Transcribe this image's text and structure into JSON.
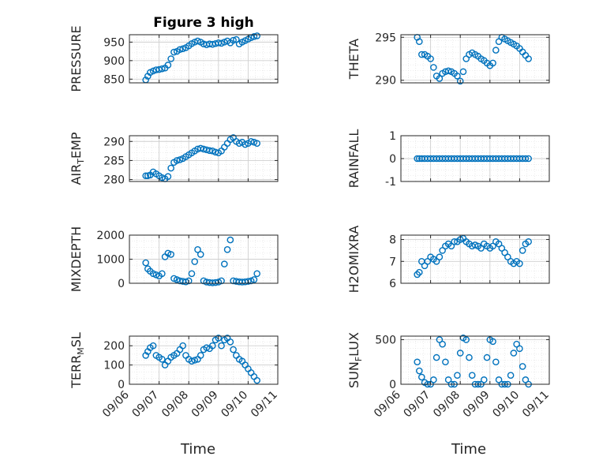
{
  "chart_data": [
    {
      "type": "scatter",
      "title": "Figure 3 high",
      "ylabel": "PRESSURE",
      "ylim": [
        840,
        970
      ],
      "yticks": [
        850,
        900,
        950
      ],
      "xticks": [
        "09/06",
        "09/07",
        "09/08",
        "09/09",
        "09/10",
        "09/11"
      ],
      "xlim": [
        0,
        5
      ],
      "grid": true,
      "series": [
        {
          "x": [
            0.55,
            0.62,
            0.7,
            0.8,
            0.9,
            1.0,
            1.1,
            1.2,
            1.3,
            1.4,
            1.5,
            1.6,
            1.7,
            1.8,
            1.9,
            2.0,
            2.1,
            2.2,
            2.3,
            2.4,
            2.5,
            2.6,
            2.7,
            2.8,
            2.9,
            3.0,
            3.1,
            3.2,
            3.3,
            3.4,
            3.5,
            3.6,
            3.7,
            3.8,
            3.9,
            4.0,
            4.1,
            4.2,
            4.3
          ],
          "y": [
            848,
            858,
            868,
            872,
            875,
            876,
            878,
            880,
            888,
            905,
            923,
            925,
            930,
            932,
            935,
            940,
            946,
            950,
            953,
            950,
            945,
            943,
            945,
            944,
            946,
            948,
            947,
            950,
            953,
            948,
            955,
            957,
            945,
            950,
            954,
            958,
            962,
            965,
            967
          ]
        }
      ]
    },
    {
      "type": "scatter",
      "ylabel": "THETA",
      "ylim": [
        289.7,
        295.3
      ],
      "yticks": [
        290,
        295
      ],
      "xticks": [
        "09/06",
        "09/07",
        "09/08",
        "09/09",
        "09/10",
        "09/11"
      ],
      "xlim": [
        0,
        5
      ],
      "grid": true,
      "series": [
        {
          "x": [
            0.55,
            0.62,
            0.7,
            0.8,
            0.9,
            1.0,
            1.1,
            1.2,
            1.3,
            1.4,
            1.5,
            1.6,
            1.7,
            1.8,
            1.9,
            2.0,
            2.1,
            2.2,
            2.3,
            2.4,
            2.5,
            2.6,
            2.7,
            2.8,
            2.9,
            3.0,
            3.1,
            3.2,
            3.3,
            3.4,
            3.5,
            3.6,
            3.7,
            3.8,
            3.9,
            4.0,
            4.1,
            4.2,
            4.3
          ],
          "y": [
            295,
            294.5,
            293,
            293,
            292.8,
            292.5,
            291.5,
            290.5,
            290.2,
            290.8,
            291,
            291.1,
            291,
            290.8,
            290.5,
            289.9,
            291,
            292.5,
            293,
            293.2,
            293,
            292.8,
            292.5,
            292.3,
            292,
            291.7,
            292,
            293.5,
            294.5,
            295,
            294.8,
            294.6,
            294.4,
            294.2,
            294,
            293.7,
            293.3,
            292.9,
            292.5
          ]
        }
      ]
    },
    {
      "type": "scatter",
      "ylabel": "AIR_TEMP",
      "ylim": [
        279.5,
        291.5
      ],
      "yticks": [
        280,
        285,
        290
      ],
      "xticks": [
        "09/06",
        "09/07",
        "09/08",
        "09/09",
        "09/10",
        "09/11"
      ],
      "xlim": [
        0,
        5
      ],
      "grid": true,
      "series": [
        {
          "x": [
            0.55,
            0.62,
            0.7,
            0.8,
            0.9,
            1.0,
            1.1,
            1.2,
            1.3,
            1.4,
            1.5,
            1.6,
            1.7,
            1.8,
            1.9,
            2.0,
            2.1,
            2.2,
            2.3,
            2.4,
            2.5,
            2.6,
            2.7,
            2.8,
            2.9,
            3.0,
            3.1,
            3.2,
            3.3,
            3.4,
            3.5,
            3.6,
            3.7,
            3.8,
            3.9,
            4.0,
            4.1,
            4.2,
            4.3
          ],
          "y": [
            281,
            281,
            281.2,
            282,
            281.5,
            281,
            280.5,
            280.2,
            280.8,
            283,
            284.5,
            285,
            285.2,
            285.5,
            286,
            286.5,
            287,
            287.5,
            288,
            288.2,
            288,
            287.8,
            287.6,
            287.5,
            287.2,
            287,
            287.5,
            288.5,
            289.5,
            290.5,
            291,
            290,
            289.5,
            289.8,
            289.2,
            289.5,
            290,
            289.8,
            289.5
          ]
        }
      ]
    },
    {
      "type": "scatter",
      "ylabel": "RAINFALL",
      "ylim": [
        -1,
        1
      ],
      "yticks": [
        -1,
        0,
        1
      ],
      "xticks": [
        "09/06",
        "09/07",
        "09/08",
        "09/09",
        "09/10",
        "09/11"
      ],
      "xlim": [
        0,
        5
      ],
      "grid": true,
      "series": [
        {
          "x": [
            0.55,
            0.62,
            0.7,
            0.8,
            0.9,
            1.0,
            1.1,
            1.2,
            1.3,
            1.4,
            1.5,
            1.6,
            1.7,
            1.8,
            1.9,
            2.0,
            2.1,
            2.2,
            2.3,
            2.4,
            2.5,
            2.6,
            2.7,
            2.8,
            2.9,
            3.0,
            3.1,
            3.2,
            3.3,
            3.4,
            3.5,
            3.6,
            3.7,
            3.8,
            3.9,
            4.0,
            4.1,
            4.2,
            4.3
          ],
          "y": [
            0,
            0,
            0,
            0,
            0,
            0,
            0,
            0,
            0,
            0,
            0,
            0,
            0,
            0,
            0,
            0,
            0,
            0,
            0,
            0,
            0,
            0,
            0,
            0,
            0,
            0,
            0,
            0,
            0,
            0,
            0,
            0,
            0,
            0,
            0,
            0,
            0,
            0,
            0
          ]
        }
      ]
    },
    {
      "type": "scatter",
      "ylabel": "MIXDEPTH",
      "ylim": [
        0,
        2000
      ],
      "yticks": [
        0,
        1000,
        2000
      ],
      "xticks": [
        "09/06",
        "09/07",
        "09/08",
        "09/09",
        "09/10",
        "09/11"
      ],
      "xlim": [
        0,
        5
      ],
      "grid": true,
      "series": [
        {
          "x": [
            0.55,
            0.62,
            0.7,
            0.8,
            0.9,
            1.0,
            1.1,
            1.2,
            1.3,
            1.4,
            1.5,
            1.6,
            1.7,
            1.8,
            1.9,
            2.0,
            2.1,
            2.2,
            2.3,
            2.4,
            2.5,
            2.6,
            2.7,
            2.8,
            2.9,
            3.0,
            3.1,
            3.2,
            3.3,
            3.4,
            3.5,
            3.6,
            3.7,
            3.8,
            3.9,
            4.0,
            4.1,
            4.2,
            4.3
          ],
          "y": [
            850,
            600,
            500,
            400,
            350,
            300,
            400,
            1100,
            1250,
            1200,
            200,
            150,
            100,
            80,
            60,
            100,
            400,
            900,
            1400,
            1200,
            100,
            50,
            30,
            20,
            30,
            50,
            100,
            800,
            1400,
            1800,
            100,
            80,
            60,
            50,
            60,
            80,
            100,
            150,
            400
          ]
        }
      ]
    },
    {
      "type": "scatter",
      "ylabel": "H2OMIXRA",
      "ylim": [
        6,
        8.2
      ],
      "yticks": [
        6,
        7,
        8
      ],
      "xticks": [
        "09/06",
        "09/07",
        "09/08",
        "09/09",
        "09/10",
        "09/11"
      ],
      "xlim": [
        0,
        5
      ],
      "grid": true,
      "series": [
        {
          "x": [
            0.55,
            0.62,
            0.7,
            0.8,
            0.9,
            1.0,
            1.1,
            1.2,
            1.3,
            1.4,
            1.5,
            1.6,
            1.7,
            1.8,
            1.9,
            2.0,
            2.1,
            2.2,
            2.3,
            2.4,
            2.5,
            2.6,
            2.7,
            2.8,
            2.9,
            3.0,
            3.1,
            3.2,
            3.3,
            3.4,
            3.5,
            3.6,
            3.7,
            3.8,
            3.9,
            4.0,
            4.1,
            4.2,
            4.3
          ],
          "y": [
            6.4,
            6.5,
            7,
            6.8,
            7,
            7.2,
            7.1,
            7.0,
            7.2,
            7.5,
            7.7,
            7.8,
            7.7,
            7.9,
            7.9,
            8.0,
            8.05,
            7.9,
            7.8,
            7.7,
            7.75,
            7.7,
            7.6,
            7.8,
            7.7,
            7.6,
            7.7,
            7.9,
            7.8,
            7.6,
            7.4,
            7.2,
            7.0,
            6.9,
            7.0,
            6.9,
            7.5,
            7.8,
            7.9
          ]
        }
      ]
    },
    {
      "type": "scatter",
      "ylabel": "TERR_MSL",
      "ylim": [
        0,
        250
      ],
      "yticks": [
        0,
        100,
        200
      ],
      "xticks": [
        "09/06",
        "09/07",
        "09/08",
        "09/09",
        "09/10",
        "09/11"
      ],
      "xlim": [
        0,
        5
      ],
      "grid": true,
      "series": [
        {
          "x": [
            0.55,
            0.62,
            0.7,
            0.8,
            0.9,
            1.0,
            1.1,
            1.2,
            1.3,
            1.4,
            1.5,
            1.6,
            1.7,
            1.8,
            1.9,
            2.0,
            2.1,
            2.2,
            2.3,
            2.4,
            2.5,
            2.6,
            2.7,
            2.8,
            2.9,
            3.0,
            3.1,
            3.2,
            3.3,
            3.4,
            3.5,
            3.6,
            3.7,
            3.8,
            3.9,
            4.0,
            4.1,
            4.2,
            4.3
          ],
          "y": [
            150,
            170,
            190,
            200,
            150,
            140,
            130,
            100,
            120,
            140,
            150,
            160,
            180,
            200,
            150,
            130,
            120,
            125,
            130,
            150,
            180,
            190,
            185,
            200,
            230,
            240,
            200,
            230,
            240,
            220,
            180,
            150,
            130,
            120,
            100,
            80,
            60,
            40,
            20
          ]
        }
      ]
    },
    {
      "type": "scatter",
      "ylabel": "SUN_FLUX",
      "ylim": [
        0,
        540
      ],
      "yticks": [
        0,
        500
      ],
      "xticks": [
        "09/06",
        "09/07",
        "09/08",
        "09/09",
        "09/10",
        "09/11"
      ],
      "xlim": [
        0,
        5
      ],
      "grid": true,
      "series": [
        {
          "x": [
            0.55,
            0.62,
            0.7,
            0.8,
            0.9,
            1.0,
            1.1,
            1.2,
            1.3,
            1.4,
            1.5,
            1.6,
            1.7,
            1.8,
            1.9,
            2.0,
            2.1,
            2.2,
            2.3,
            2.4,
            2.5,
            2.6,
            2.7,
            2.8,
            2.9,
            3.0,
            3.1,
            3.2,
            3.3,
            3.4,
            3.5,
            3.6,
            3.7,
            3.8,
            3.9,
            4.0,
            4.1,
            4.2,
            4.3
          ],
          "y": [
            250,
            150,
            80,
            20,
            0,
            0,
            50,
            300,
            500,
            450,
            250,
            50,
            0,
            0,
            100,
            350,
            520,
            500,
            300,
            100,
            0,
            0,
            0,
            50,
            300,
            500,
            480,
            250,
            50,
            0,
            0,
            0,
            100,
            350,
            450,
            400,
            200,
            50,
            0
          ]
        }
      ]
    }
  ],
  "xlabel": "Time",
  "colors": {
    "marker": "#0072BD",
    "axis": "#262626",
    "grid": "#dcdcdc"
  }
}
